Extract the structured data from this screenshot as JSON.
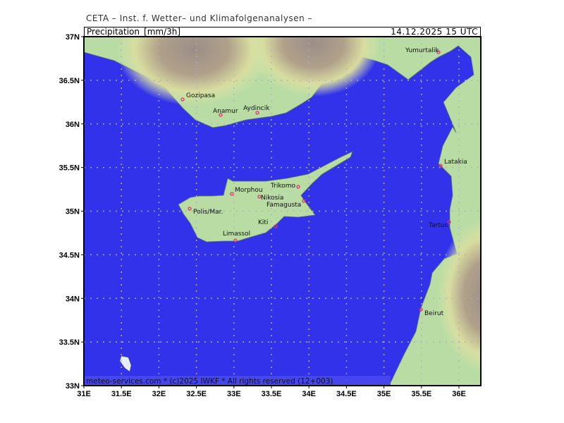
{
  "header": {
    "organization": "CETA – Inst. f. Wetter– und Klimafolgenanalysen –",
    "parameter": "Precipitation_[mm/3h]",
    "datetime": "14.12.2025  15 UTC"
  },
  "footer": {
    "copyright": "meteo-services.com * (c)2025 IWKF * All rights reserved (12+003)"
  },
  "axes": {
    "lat_labels": [
      "37N",
      "36.5N",
      "36N",
      "35.5N",
      "35N",
      "34.5N",
      "34N",
      "33.5N",
      "33N"
    ],
    "lon_labels": [
      "31E",
      "31.5E",
      "32E",
      "32.5E",
      "33E",
      "33.5E",
      "34E",
      "34.5E",
      "35E",
      "35.5E",
      "36E"
    ]
  },
  "cities": [
    "Gozipasa",
    "Anamur",
    "Aydincik",
    "Yumurtalik",
    "Latakia",
    "Tartus",
    "Beirut",
    "Morphou",
    "Nikosia",
    "Trikomo",
    "Famagusta",
    "Polis/Mar.",
    "Kiti",
    "Limassol"
  ],
  "colors": {
    "sea": "#3232ea",
    "land": "#b8dca4",
    "mountain": "#a8968c",
    "city_marker": "#e0306a"
  }
}
